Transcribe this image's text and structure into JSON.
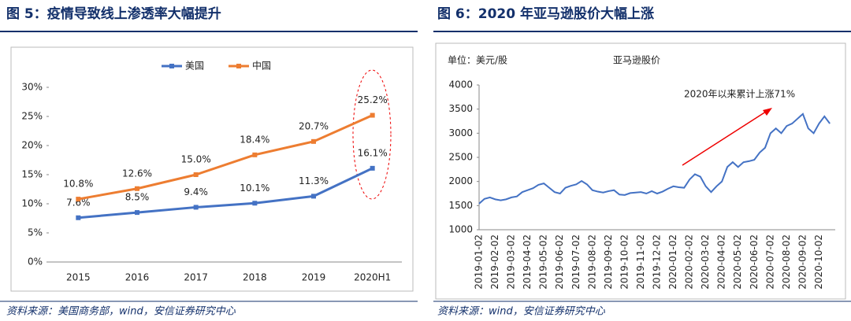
{
  "chart_data": [
    {
      "type": "line",
      "title": "图 5：疫情导致线上渗透率大幅提升",
      "source": "资料来源：美国商务部，wind，安信证券研究中心",
      "categories": [
        "2015",
        "2016",
        "2017",
        "2018",
        "2019",
        "2020H1"
      ],
      "series": [
        {
          "name": "美国",
          "color": "#4472c4",
          "values": [
            7.6,
            8.5,
            9.4,
            10.1,
            11.3,
            16.1
          ],
          "value_labels": [
            "7.6%",
            "8.5%",
            "9.4%",
            "10.1%",
            "11.3%",
            "16.1%"
          ]
        },
        {
          "name": "中国",
          "color": "#ed7d31",
          "values": [
            10.8,
            12.6,
            15.0,
            18.4,
            20.7,
            25.2
          ],
          "value_labels": [
            "10.8%",
            "12.6%",
            "15.0%",
            "18.4%",
            "20.7%",
            "25.2%"
          ]
        }
      ],
      "ylim": [
        0,
        30
      ],
      "yticks": [
        {
          "value": 0,
          "label": "0%"
        },
        {
          "value": 5,
          "label": "5%"
        },
        {
          "value": 10,
          "label": "10%"
        },
        {
          "value": 15,
          "label": "15%"
        },
        {
          "value": 20,
          "label": "20%"
        },
        {
          "value": 25,
          "label": "25%"
        },
        {
          "value": 30,
          "label": "30%"
        }
      ],
      "legend": "top"
    },
    {
      "type": "line",
      "title": "图 6：2020 年亚马逊股价大幅上涨",
      "source": "资料来源：wind，安信证券研究中心",
      "subtitle": "单位：美元/股",
      "annotation": "2020年以来累计上涨71%",
      "categories": [
        "2019-01-02",
        null,
        null,
        "2019-02-02",
        null,
        null,
        "2019-03-02",
        null,
        null,
        "2019-04-02",
        null,
        null,
        "2019-05-02",
        null,
        null,
        "2019-06-02",
        null,
        null,
        "2019-07-02",
        null,
        null,
        "2019-08-02",
        null,
        null,
        "2019-09-02",
        null,
        null,
        "2019-10-02",
        null,
        null,
        "2019-11-02",
        null,
        null,
        "2019-12-02",
        null,
        null,
        "2020-01-02",
        null,
        null,
        "2020-02-02",
        null,
        null,
        "2020-03-02",
        null,
        null,
        "2020-04-02",
        null,
        null,
        "2020-05-02",
        null,
        null,
        "2020-06-02",
        null,
        null,
        "2020-07-02",
        null,
        null,
        "2020-08-02",
        null,
        null,
        "2020-09-02",
        null,
        null,
        "2020-10-02",
        null,
        null
      ],
      "series": [
        {
          "name": "亚马逊股价",
          "color": "#4472c4",
          "values": [
            1540,
            1640,
            1670,
            1630,
            1610,
            1630,
            1670,
            1690,
            1780,
            1820,
            1860,
            1930,
            1960,
            1870,
            1780,
            1750,
            1870,
            1910,
            1940,
            2010,
            1940,
            1820,
            1790,
            1770,
            1800,
            1820,
            1730,
            1720,
            1760,
            1770,
            1780,
            1750,
            1800,
            1750,
            1790,
            1850,
            1900,
            1880,
            1870,
            2040,
            2150,
            2100,
            1900,
            1780,
            1900,
            2000,
            2300,
            2400,
            2300,
            2400,
            2420,
            2450,
            2600,
            2700,
            3000,
            3100,
            3000,
            3150,
            3200,
            3300,
            3400,
            3100,
            3000,
            3200,
            3350,
            3200
          ]
        }
      ],
      "ylim": [
        1000,
        4000
      ],
      "yticks": [
        1000,
        1500,
        2000,
        2500,
        3000,
        3500,
        4000
      ]
    }
  ]
}
